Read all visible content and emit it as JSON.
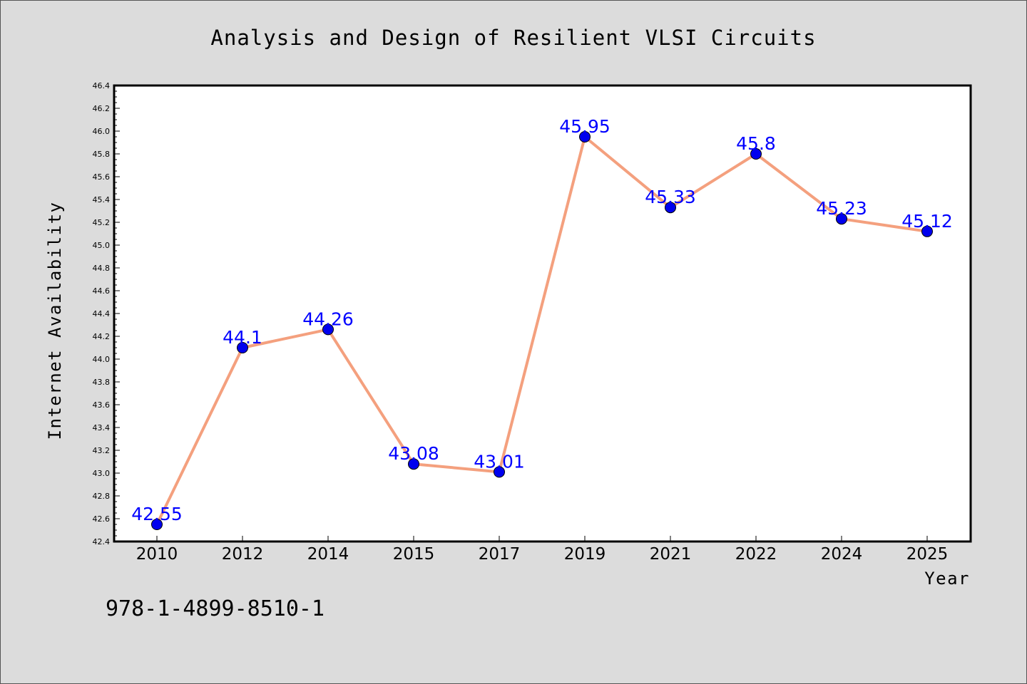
{
  "chart_data": {
    "type": "line",
    "title": "Analysis and Design of Resilient VLSI Circuits",
    "xlabel": "Year",
    "ylabel": "Internet Availability",
    "categories": [
      "2010",
      "2012",
      "2014",
      "2015",
      "2017",
      "2019",
      "2021",
      "2022",
      "2024",
      "2025"
    ],
    "values": [
      42.55,
      44.1,
      44.26,
      43.08,
      43.01,
      45.95,
      45.33,
      45.8,
      45.23,
      45.12
    ],
    "data_labels": [
      "42.55",
      "44.1",
      "44.26",
      "43.08",
      "43.01",
      "45.95",
      "45.33",
      "45.8",
      "45.23",
      "45.12"
    ],
    "ylim": [
      42.4,
      46.4
    ],
    "yticks": [
      "42.4",
      "42.6",
      "42.8",
      "43.0",
      "43.2",
      "43.4",
      "43.6",
      "43.8",
      "44.0",
      "44.2",
      "44.4",
      "44.6",
      "44.8",
      "45.0",
      "45.2",
      "45.4",
      "45.6",
      "45.8",
      "46.0",
      "46.2",
      "46.4"
    ],
    "grid": false,
    "line_color": "#f4a07e",
    "marker_color": "#0000ee",
    "label_color": "#0000ff"
  },
  "footer": {
    "isbn": "978-1-4899-8510-1"
  }
}
